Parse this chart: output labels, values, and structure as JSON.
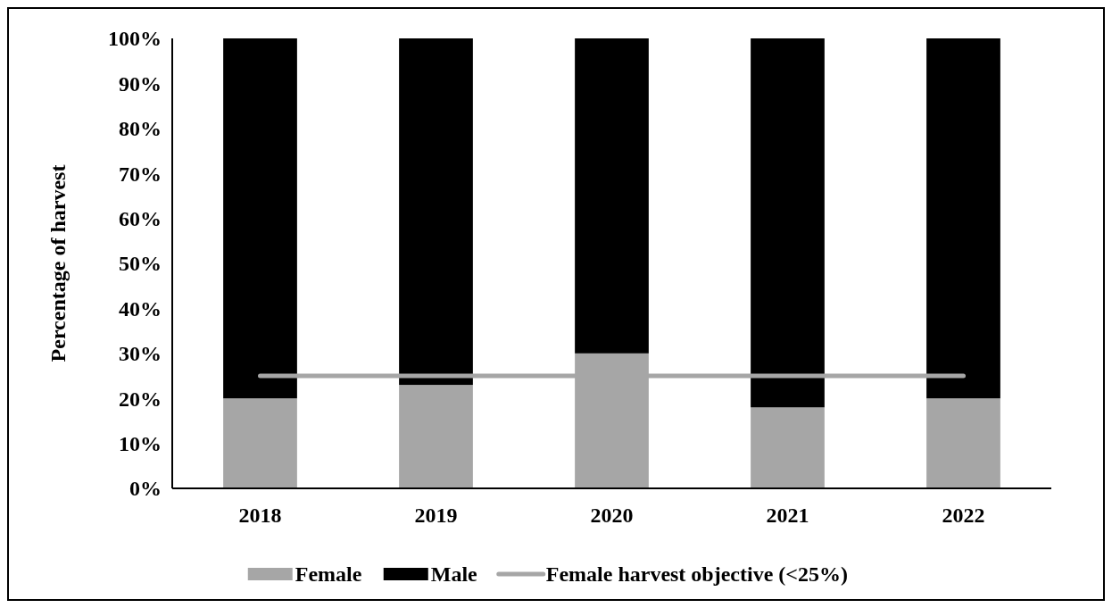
{
  "chart_data": {
    "type": "bar",
    "stacked": true,
    "ylabel": "Percentage of harvest",
    "categories": [
      "2018",
      "2019",
      "2020",
      "2021",
      "2022"
    ],
    "series": [
      {
        "name": "Female",
        "color": "#a6a6a6",
        "values": [
          20,
          23,
          30,
          18,
          20
        ]
      },
      {
        "name": "Male",
        "color": "#000000",
        "values": [
          80,
          77,
          70,
          82,
          80
        ]
      },
      {
        "name": "Female harvest objective (<25%)",
        "type": "line",
        "color": "#a6a6a6",
        "values": [
          25,
          25,
          25,
          25,
          25
        ]
      }
    ],
    "ylim": [
      0,
      100
    ],
    "yticks": [
      {
        "value": 0,
        "label": "0%"
      },
      {
        "value": 10,
        "label": "10%"
      },
      {
        "value": 20,
        "label": "20%"
      },
      {
        "value": 30,
        "label": "30%"
      },
      {
        "value": 40,
        "label": "40%"
      },
      {
        "value": 50,
        "label": "50%"
      },
      {
        "value": 60,
        "label": "60%"
      },
      {
        "value": 70,
        "label": "70%"
      },
      {
        "value": 80,
        "label": "80%"
      },
      {
        "value": 90,
        "label": "90%"
      },
      {
        "value": 100,
        "label": "100%"
      }
    ],
    "grid": false,
    "legend": "bottom"
  }
}
